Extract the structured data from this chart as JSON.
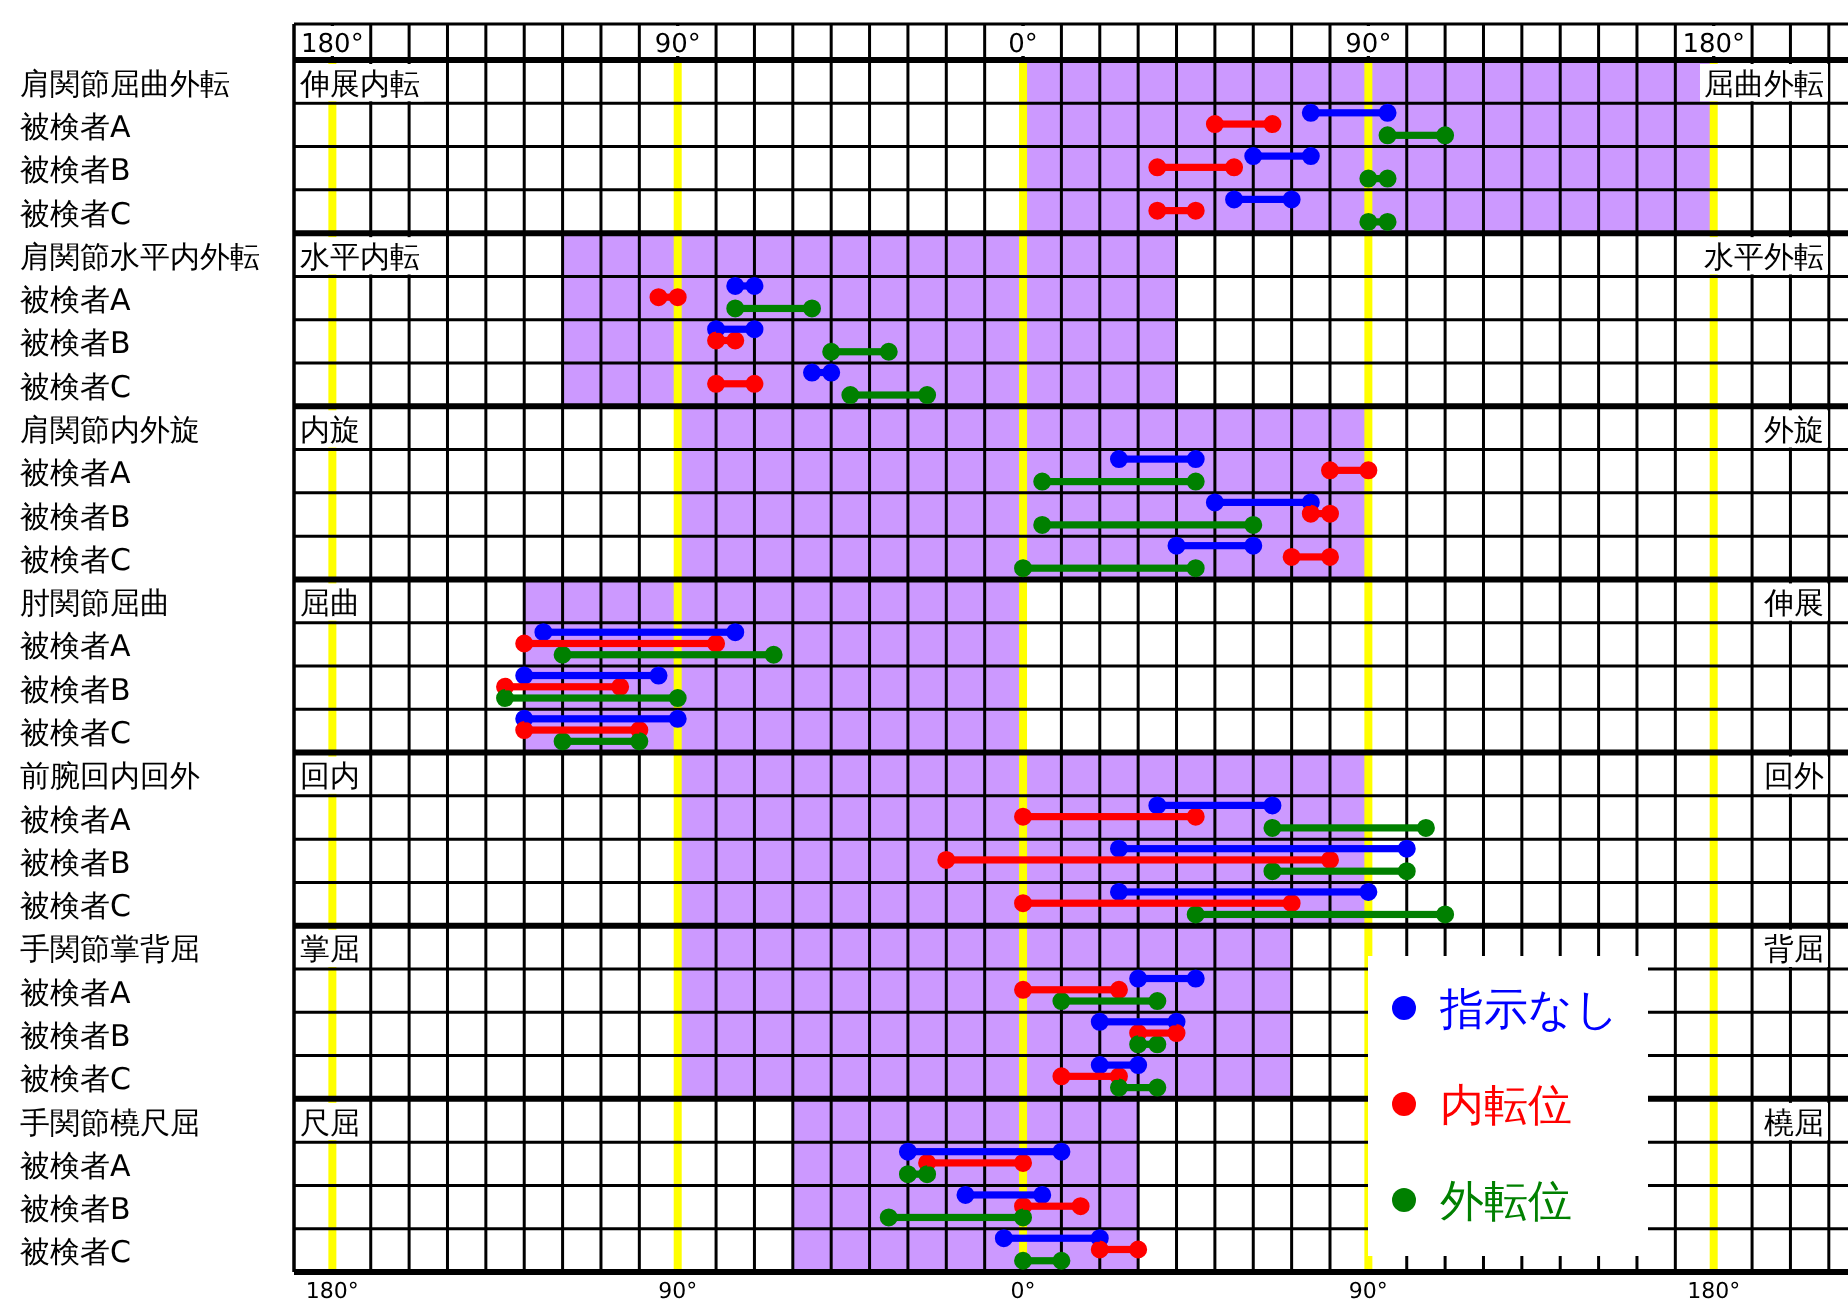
{
  "chart_data": {
    "type": "bar",
    "orientation": "horizontal",
    "marker": "circle",
    "grid": "x",
    "legend": "bottom right",
    "categories": [
      "肩関節屈曲外転",
      "被検者A",
      "被検者B",
      "被検者C",
      "肩関節水平内外転",
      "被検者A",
      "被検者B",
      "被検者C",
      "肩関節内外旋",
      "被検者A",
      "被検者B",
      "被検者C",
      "肘関節屈曲",
      "被検者A",
      "被検者B",
      "被検者C",
      "前腕回内回外",
      "被検者A",
      "被検者B",
      "被検者C",
      "手関節掌背屈",
      "被検者A",
      "被検者B",
      "被検者C",
      "手関節橈尺屈",
      "被検者A",
      "被検者B",
      "被検者C"
    ],
    "xlim": [
      -190,
      215
    ],
    "xticks": [
      {
        "value": -190,
        "label": null
      },
      {
        "value": -180,
        "label": "180°"
      },
      {
        "value": -170,
        "label": null
      },
      {
        "value": -160,
        "label": null
      },
      {
        "value": -150,
        "label": null
      },
      {
        "value": -140,
        "label": null
      },
      {
        "value": -130,
        "label": null
      },
      {
        "value": -120,
        "label": null
      },
      {
        "value": -110,
        "label": null
      },
      {
        "value": -100,
        "label": null
      },
      {
        "value": -90,
        "label": "90°"
      },
      {
        "value": -80,
        "label": null
      },
      {
        "value": -70,
        "label": null
      },
      {
        "value": -60,
        "label": null
      },
      {
        "value": -50,
        "label": null
      },
      {
        "value": -40,
        "label": null
      },
      {
        "value": -30,
        "label": null
      },
      {
        "value": -20,
        "label": null
      },
      {
        "value": -10,
        "label": null
      },
      {
        "value": 0,
        "label": "0°"
      },
      {
        "value": 10,
        "label": null
      },
      {
        "value": 20,
        "label": null
      },
      {
        "value": 30,
        "label": null
      },
      {
        "value": 40,
        "label": null
      },
      {
        "value": 50,
        "label": null
      },
      {
        "value": 60,
        "label": null
      },
      {
        "value": 70,
        "label": null
      },
      {
        "value": 80,
        "label": null
      },
      {
        "value": 90,
        "label": "90°"
      },
      {
        "value": 100,
        "label": null
      },
      {
        "value": 110,
        "label": null
      },
      {
        "value": 120,
        "label": null
      },
      {
        "value": 130,
        "label": null
      },
      {
        "value": 140,
        "label": null
      },
      {
        "value": 150,
        "label": null
      },
      {
        "value": 160,
        "label": null
      },
      {
        "value": 170,
        "label": null
      },
      {
        "value": 180,
        "label": "180°"
      },
      {
        "value": 190,
        "label": null
      },
      {
        "value": 200,
        "label": null
      },
      {
        "value": 210,
        "label": null
      }
    ],
    "bands": [
      {
        "axis": "x",
        "from": 0,
        "to": 180,
        "color": "#cc99ff"
      },
      {
        "axis": "x",
        "from": -120,
        "to": 40,
        "color": "#cc99ff"
      },
      {
        "axis": "x",
        "from": -90,
        "to": 90,
        "color": "#cc99ff"
      },
      {
        "axis": "x",
        "from": -130,
        "to": 0,
        "color": "#cc99ff"
      },
      {
        "axis": "x",
        "from": -90,
        "to": 90,
        "color": "#cc99ff"
      },
      {
        "axis": "x",
        "from": -90,
        "to": 70,
        "color": "#cc99ff"
      },
      {
        "axis": "x",
        "from": -60,
        "to": 30,
        "color": "#cc99ff"
      }
    ],
    "series": [
      {
        "name": "指示なし",
        "color": "#0000ff",
        "base": [
          null,
          75,
          60,
          55,
          null,
          -75,
          -80,
          -55,
          null,
          25,
          50,
          40,
          null,
          -125,
          -130,
          -130,
          null,
          35,
          25,
          25,
          null,
          30,
          20,
          20,
          null,
          -30,
          -15,
          -5
        ],
        "values": [
          null,
          20,
          15,
          15,
          null,
          5,
          10,
          5,
          null,
          20,
          25,
          20,
          null,
          50,
          35,
          40,
          null,
          30,
          75,
          65,
          null,
          15,
          20,
          10,
          null,
          40,
          20,
          25
        ]
      },
      {
        "name": "内転位",
        "color": "#ff0000",
        "base": [
          null,
          50,
          35,
          35,
          null,
          -95,
          -80,
          -80,
          null,
          80,
          75,
          70,
          null,
          -130,
          -135,
          -130,
          null,
          0,
          -20,
          0,
          null,
          0,
          30,
          10,
          null,
          -25,
          0,
          20
        ],
        "values": [
          null,
          15,
          20,
          10,
          null,
          5,
          5,
          10,
          null,
          10,
          5,
          10,
          null,
          50,
          30,
          30,
          null,
          45,
          100,
          70,
          null,
          25,
          10,
          15,
          null,
          25,
          15,
          10
        ]
      },
      {
        "name": "外転位",
        "color": "#008000",
        "base": [
          null,
          95,
          90,
          90,
          null,
          -75,
          -50,
          -45,
          null,
          5,
          5,
          0,
          null,
          -120,
          -135,
          -120,
          null,
          65,
          65,
          45,
          null,
          10,
          30,
          25,
          null,
          -30,
          -35,
          0
        ],
        "values": [
          null,
          15,
          5,
          5,
          null,
          20,
          15,
          20,
          null,
          40,
          55,
          45,
          null,
          55,
          45,
          20,
          null,
          40,
          35,
          65,
          null,
          25,
          5,
          10,
          null,
          5,
          35,
          10
        ]
      }
    ],
    "annotations": [
      "伸展内転",
      "屈曲外転",
      "水平内転",
      "水平外転",
      "内旋",
      "外旋",
      "屈曲",
      "伸展",
      "回内",
      "回外",
      "掌屈",
      "背屈",
      "尺屈",
      "橈屈"
    ]
  }
}
